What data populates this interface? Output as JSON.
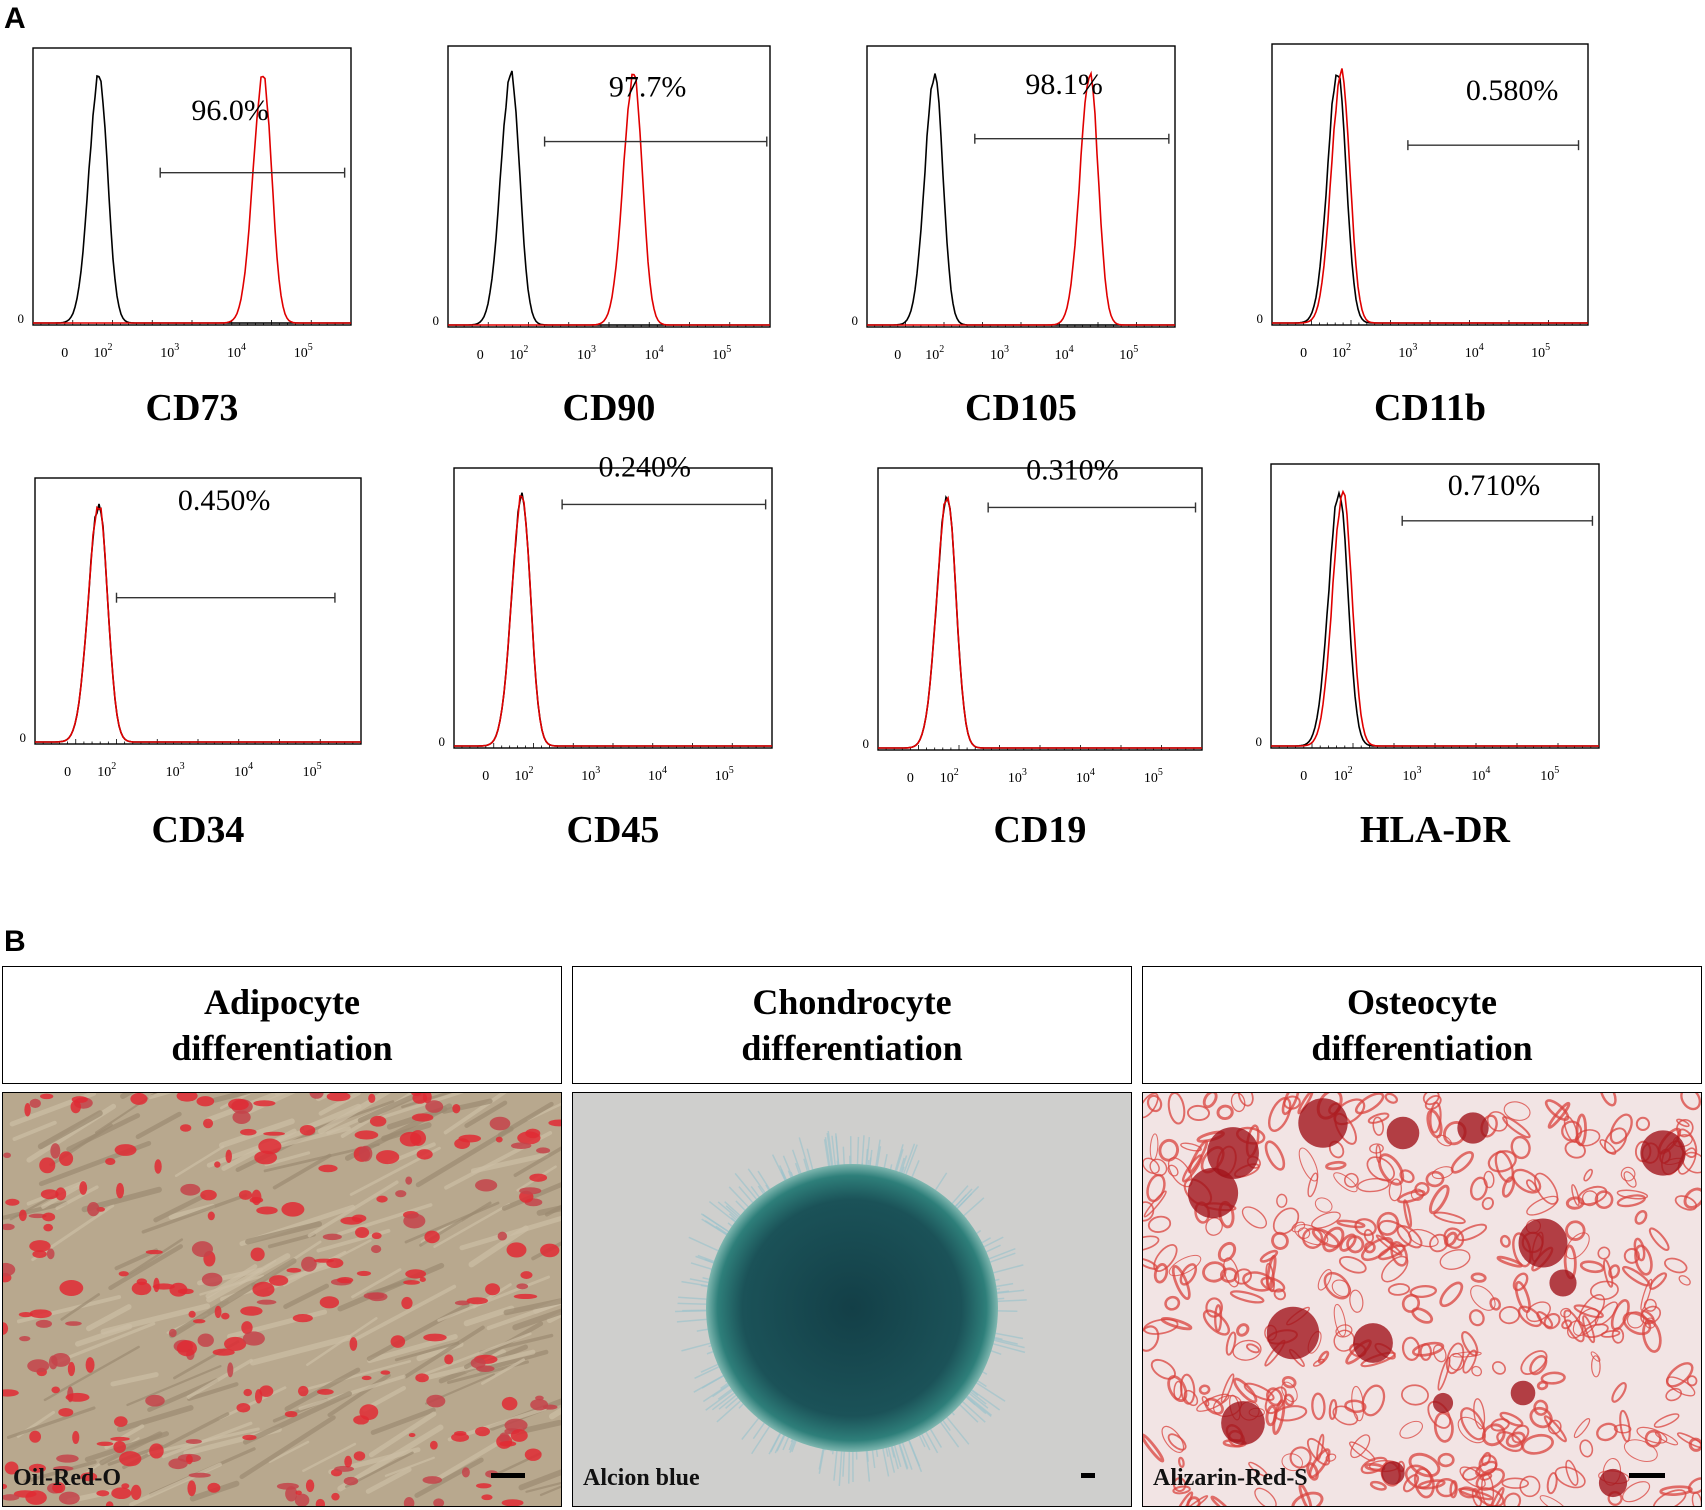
{
  "panels": {
    "a_label": "A",
    "b_label": "B"
  },
  "chart_data": [
    {
      "type": "histogram",
      "marker": "CD73",
      "gate_label": "96.0%",
      "x_ticks": [
        "0",
        "10^2",
        "10^3",
        "10^4",
        "10^5"
      ],
      "y_tick": "0",
      "series": [
        {
          "color": "#000000",
          "peak_log": 1.8
        },
        {
          "color": "#e00000",
          "peak_log": 4.4
        }
      ]
    },
    {
      "type": "histogram",
      "marker": "CD90",
      "gate_label": "97.7%",
      "x_ticks": [
        "0",
        "10^2",
        "10^3",
        "10^4",
        "10^5"
      ],
      "y_tick": "0",
      "series": [
        {
          "color": "#000000",
          "peak_log": 1.6
        },
        {
          "color": "#e00000",
          "peak_log": 3.7
        }
      ]
    },
    {
      "type": "histogram",
      "marker": "CD105",
      "gate_label": "98.1%",
      "x_ticks": [
        "0",
        "10^2",
        "10^3",
        "10^4",
        "10^5"
      ],
      "y_tick": "0",
      "series": [
        {
          "color": "#000000",
          "peak_log": 2.0
        },
        {
          "color": "#e00000",
          "peak_log": 4.4
        }
      ]
    },
    {
      "type": "histogram",
      "marker": "CD11b",
      "gate_label": "0.580%",
      "x_ticks": [
        "0",
        "10^2",
        "10^3",
        "10^4",
        "10^5"
      ],
      "y_tick": "0",
      "series": [
        {
          "color": "#000000",
          "peak_log": 1.8
        },
        {
          "color": "#e00000",
          "peak_log": 2.0
        }
      ]
    },
    {
      "type": "histogram",
      "marker": "CD34",
      "gate_label": "0.450%",
      "x_ticks": [
        "0",
        "10^2",
        "10^3",
        "10^4",
        "10^5"
      ],
      "y_tick": "0",
      "series": [
        {
          "color": "#000000",
          "peak_log": 1.6
        },
        {
          "color": "#e00000",
          "peak_log": 1.6
        }
      ]
    },
    {
      "type": "histogram",
      "marker": "CD45",
      "gate_label": "0.240%",
      "x_ticks": [
        "0",
        "10^2",
        "10^3",
        "10^4",
        "10^5"
      ],
      "y_tick": "0",
      "series": [
        {
          "color": "#000000",
          "peak_log": 1.9
        },
        {
          "color": "#e00000",
          "peak_log": 1.9
        }
      ]
    },
    {
      "type": "histogram",
      "marker": "CD19",
      "gate_label": "0.310%",
      "x_ticks": [
        "0",
        "10^2",
        "10^3",
        "10^4",
        "10^5"
      ],
      "y_tick": "0",
      "series": [
        {
          "color": "#000000",
          "peak_log": 1.9
        },
        {
          "color": "#e00000",
          "peak_log": 1.9
        }
      ]
    },
    {
      "type": "histogram",
      "marker": "HLA-DR",
      "gate_label": "0.710%",
      "x_ticks": [
        "0",
        "10^2",
        "10^3",
        "10^4",
        "10^5"
      ],
      "y_tick": "0",
      "series": [
        {
          "color": "#000000",
          "peak_log": 1.8
        },
        {
          "color": "#e00000",
          "peak_log": 2.0
        }
      ]
    }
  ],
  "differentiation": [
    {
      "title_line1": "Adipocyte",
      "title_line2": "differentiation",
      "stain": "Oil-Red-O"
    },
    {
      "title_line1": "Chondrocyte",
      "title_line2": "differentiation",
      "stain": "Alcion  blue"
    },
    {
      "title_line1": "Osteocyte",
      "title_line2": "differentiation",
      "stain": "Alizarin-Red-S"
    }
  ]
}
